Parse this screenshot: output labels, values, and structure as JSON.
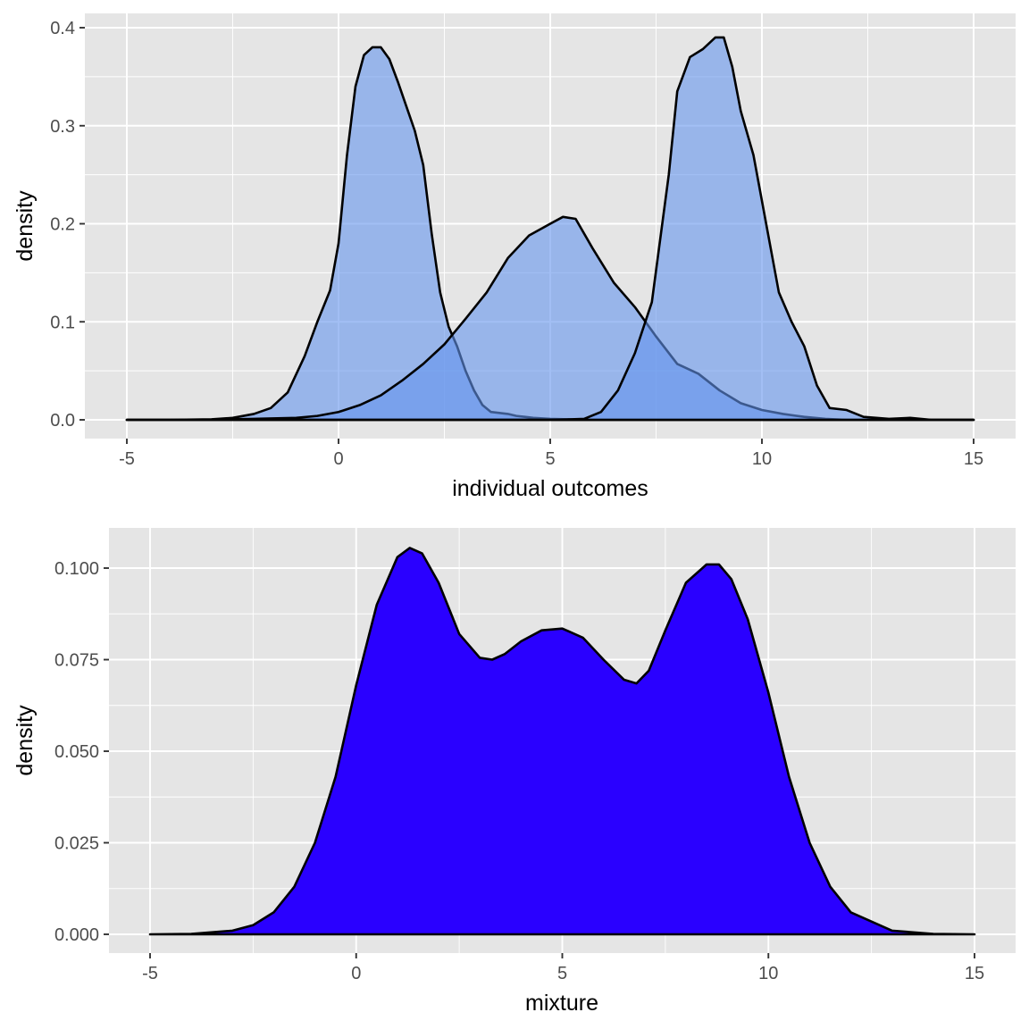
{
  "colors": {
    "panel_bg": "#e5e5e5",
    "gridline": "#ffffff",
    "tick_mark": "#333333",
    "tick_text": "#4d4d4d",
    "outline": "#000000",
    "top_fill": "#6495ed",
    "top_fill_opacity": 0.6,
    "bottom_fill": "#2a00ff"
  },
  "chart_data": [
    {
      "type": "area",
      "xlabel": "individual outcomes",
      "ylabel": "density",
      "xlim": [
        -5,
        15
      ],
      "ylim": [
        0,
        0.4
      ],
      "x_ticks": [
        -5,
        0,
        5,
        10,
        15
      ],
      "x_tick_labels": [
        "-5",
        "0",
        "5",
        "10",
        "15"
      ],
      "y_ticks": [
        0,
        0.1,
        0.2,
        0.3,
        0.4
      ],
      "y_tick_labels": [
        "0.0",
        "0.1",
        "0.2",
        "0.3",
        "0.4"
      ],
      "grid": true,
      "series": [
        {
          "x": [
            -5,
            -4,
            -3,
            -2.5,
            -2,
            -1.6,
            -1.2,
            -0.8,
            -0.5,
            -0.2,
            0,
            0.2,
            0.4,
            0.6,
            0.8,
            1.0,
            1.2,
            1.4,
            1.6,
            1.8,
            2.0,
            2.2,
            2.4,
            2.6,
            2.8,
            3.0,
            3.2,
            3.4,
            3.6,
            3.8,
            4.0,
            4.2,
            4.4,
            4.6,
            5.0,
            5.5,
            6,
            8,
            10,
            15
          ],
          "y": [
            0,
            0,
            0.0005,
            0.002,
            0.006,
            0.012,
            0.028,
            0.065,
            0.1,
            0.132,
            0.18,
            0.27,
            0.34,
            0.372,
            0.38,
            0.38,
            0.368,
            0.345,
            0.32,
            0.295,
            0.26,
            0.19,
            0.13,
            0.095,
            0.075,
            0.05,
            0.03,
            0.015,
            0.008,
            0.007,
            0.006,
            0.004,
            0.003,
            0.002,
            0.001,
            0.0005,
            0,
            0,
            0,
            0
          ]
        },
        {
          "x": [
            -5,
            -3,
            -2,
            -1,
            -0.5,
            0,
            0.5,
            1,
            1.5,
            2,
            2.5,
            3,
            3.5,
            4,
            4.5,
            5,
            5.3,
            5.6,
            6,
            6.5,
            7,
            7.5,
            8,
            8.5,
            9,
            9.5,
            10,
            10.5,
            11,
            11.5,
            12,
            13,
            14,
            15
          ],
          "y": [
            0,
            0,
            0.001,
            0.002,
            0.004,
            0.008,
            0.015,
            0.025,
            0.04,
            0.057,
            0.077,
            0.103,
            0.13,
            0.165,
            0.188,
            0.2,
            0.207,
            0.205,
            0.175,
            0.14,
            0.115,
            0.085,
            0.057,
            0.047,
            0.03,
            0.017,
            0.01,
            0.006,
            0.003,
            0.001,
            0,
            0,
            0,
            0
          ]
        },
        {
          "x": [
            -5,
            0,
            4,
            5,
            5.5,
            5.8,
            6.2,
            6.6,
            7,
            7.4,
            7.8,
            8.0,
            8.3,
            8.6,
            8.9,
            9.1,
            9.3,
            9.5,
            9.8,
            10.1,
            10.4,
            10.7,
            11.0,
            11.3,
            11.6,
            12.0,
            12.4,
            13,
            13.5,
            14,
            15
          ],
          "y": [
            0,
            0,
            0,
            0,
            0.0005,
            0.001,
            0.008,
            0.03,
            0.068,
            0.12,
            0.25,
            0.335,
            0.37,
            0.378,
            0.39,
            0.39,
            0.36,
            0.315,
            0.27,
            0.2,
            0.13,
            0.1,
            0.075,
            0.035,
            0.012,
            0.01,
            0.003,
            0.001,
            0.002,
            0,
            0
          ]
        }
      ]
    },
    {
      "type": "area",
      "xlabel": "mixture",
      "ylabel": "density",
      "xlim": [
        -5,
        15
      ],
      "ylim": [
        0,
        0.105
      ],
      "x_ticks": [
        -5,
        0,
        5,
        10,
        15
      ],
      "x_tick_labels": [
        "-5",
        "0",
        "5",
        "10",
        "15"
      ],
      "y_ticks": [
        0,
        0.025,
        0.05,
        0.075,
        0.1
      ],
      "y_tick_labels": [
        "0.000",
        "0.025",
        "0.050",
        "0.075",
        "0.100"
      ],
      "grid": true,
      "series": [
        {
          "x": [
            -5,
            -4,
            -3,
            -2.5,
            -2,
            -1.5,
            -1,
            -0.5,
            0,
            0.5,
            1,
            1.3,
            1.6,
            2,
            2.5,
            3,
            3.3,
            3.6,
            4,
            4.5,
            5,
            5.5,
            6,
            6.5,
            6.8,
            7.1,
            7.5,
            8,
            8.5,
            8.8,
            9.1,
            9.5,
            10,
            10.5,
            11,
            11.5,
            12,
            13,
            14,
            15
          ],
          "y": [
            0,
            0.0001,
            0.001,
            0.0025,
            0.006,
            0.013,
            0.025,
            0.043,
            0.068,
            0.09,
            0.103,
            0.1055,
            0.104,
            0.096,
            0.082,
            0.0755,
            0.075,
            0.0765,
            0.08,
            0.083,
            0.0835,
            0.081,
            0.075,
            0.0695,
            0.0685,
            0.072,
            0.083,
            0.096,
            0.101,
            0.101,
            0.097,
            0.086,
            0.066,
            0.043,
            0.025,
            0.013,
            0.006,
            0.001,
            0.0001,
            0
          ]
        }
      ]
    }
  ]
}
